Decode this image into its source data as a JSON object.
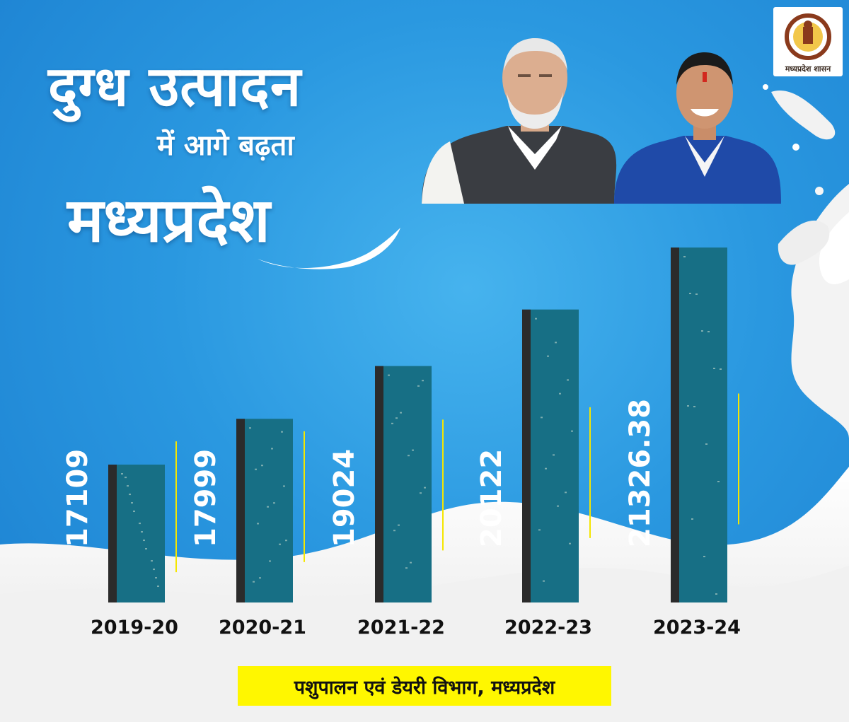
{
  "header": {
    "title_line1": "दुग्ध उत्पादन",
    "title_line2": "में आगे बढ़ता",
    "title_line3": "मध्यप्रदेश"
  },
  "emblem": {
    "caption": "मध्यप्रदेश शासन"
  },
  "chart_data": {
    "type": "bar",
    "categories": [
      "2019-20",
      "2020-21",
      "2021-22",
      "2022-23",
      "2023-24"
    ],
    "values": [
      17109,
      17999,
      19024,
      20122,
      21326.38
    ],
    "value_labels": [
      "17109",
      "17999",
      "19024",
      "20122",
      "21326.38"
    ],
    "title": "",
    "xlabel": "",
    "ylabel": "",
    "grid": false,
    "legend": "none",
    "colors": {
      "bar_face": "#176f85",
      "bar_side": "#2b2b2b",
      "leader_line": "#f5e600"
    }
  },
  "footer": {
    "source": "पशुपालन एवं डेयरी विभाग, मध्यप्रदेश"
  },
  "colors": {
    "background": "#2a98e0",
    "footer_highlight": "#fff700",
    "milk": "#f4f4f4"
  }
}
